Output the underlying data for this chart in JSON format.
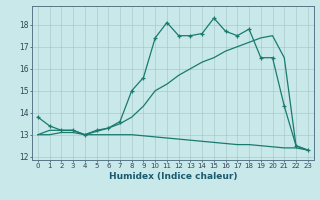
{
  "xlabel": "Humidex (Indice chaleur)",
  "bg_color": "#c8e8ea",
  "line_color": "#1a7a6e",
  "xlim": [
    -0.5,
    23.5
  ],
  "ylim": [
    11.85,
    18.85
  ],
  "yticks": [
    12,
    13,
    14,
    15,
    16,
    17,
    18
  ],
  "xticks": [
    0,
    1,
    2,
    3,
    4,
    5,
    6,
    7,
    8,
    9,
    10,
    11,
    12,
    13,
    14,
    15,
    16,
    17,
    18,
    19,
    20,
    21,
    22,
    23
  ],
  "line1_x": [
    0,
    1,
    2,
    3,
    4,
    5,
    6,
    7,
    8,
    9,
    10,
    11,
    12,
    13,
    14,
    15,
    16,
    17,
    18,
    19,
    20,
    21,
    22,
    23
  ],
  "line1_y": [
    13.8,
    13.4,
    13.2,
    13.2,
    13.0,
    13.2,
    13.3,
    13.6,
    15.0,
    15.6,
    17.4,
    18.1,
    17.5,
    17.5,
    17.6,
    18.3,
    17.7,
    17.5,
    17.8,
    16.5,
    16.5,
    14.3,
    12.5,
    12.3
  ],
  "line2_x": [
    0,
    1,
    2,
    3,
    4,
    5,
    6,
    7,
    8,
    9,
    10,
    11,
    12,
    13,
    14,
    15,
    16,
    17,
    18,
    19,
    20,
    21,
    22,
    23
  ],
  "line2_y": [
    13.0,
    13.0,
    13.1,
    13.1,
    13.0,
    13.15,
    13.3,
    13.5,
    13.8,
    14.3,
    15.0,
    15.3,
    15.7,
    16.0,
    16.3,
    16.5,
    16.8,
    17.0,
    17.2,
    17.4,
    17.5,
    16.5,
    12.5,
    12.3
  ],
  "line3_x": [
    0,
    1,
    2,
    3,
    4,
    5,
    6,
    7,
    8,
    9,
    10,
    11,
    12,
    13,
    14,
    15,
    16,
    17,
    18,
    19,
    20,
    21,
    22,
    23
  ],
  "line3_y": [
    13.0,
    13.2,
    13.2,
    13.2,
    13.0,
    13.0,
    13.0,
    13.0,
    13.0,
    12.95,
    12.9,
    12.85,
    12.8,
    12.75,
    12.7,
    12.65,
    12.6,
    12.55,
    12.55,
    12.5,
    12.45,
    12.4,
    12.4,
    12.3
  ]
}
